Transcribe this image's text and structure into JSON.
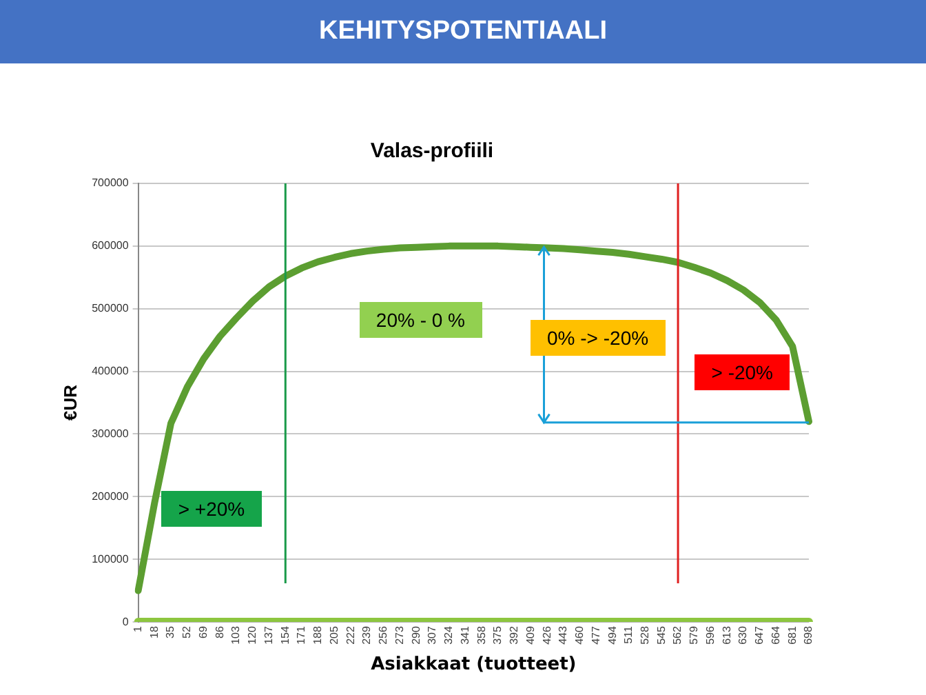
{
  "chart_data": {
    "type": "line",
    "title": "KEHITYSPOTENTIAALI",
    "subtitle": "Valas-profiili",
    "xlabel": "Asiakkaat (tuotteet)",
    "ylabel": "€UR",
    "categories": [
      "1",
      "18",
      "35",
      "52",
      "69",
      "86",
      "103",
      "120",
      "137",
      "154",
      "171",
      "188",
      "205",
      "222",
      "239",
      "256",
      "273",
      "290",
      "307",
      "324",
      "341",
      "358",
      "375",
      "392",
      "409",
      "426",
      "443",
      "460",
      "477",
      "494",
      "511",
      "528",
      "545",
      "562",
      "579",
      "596",
      "613",
      "630",
      "647",
      "664",
      "681",
      "698"
    ],
    "series": [
      {
        "color": "#5c9e31",
        "values": [
          50000,
          190000,
          317000,
          375000,
          420000,
          456000,
          485000,
          512000,
          535000,
          552000,
          565000,
          575000,
          582000,
          588000,
          592000,
          595000,
          597000,
          598000,
          599000,
          600000,
          600000,
          600000,
          600000,
          599000,
          598000,
          597000,
          596000,
          594000,
          592000,
          590000,
          587000,
          583000,
          579000,
          574000,
          566000,
          557000,
          545000,
          530000,
          510000,
          482000,
          440000,
          320000
        ]
      },
      {
        "color": "#8dc63f",
        "values": [
          0,
          0,
          0,
          0,
          0,
          0,
          0,
          0,
          0,
          0,
          0,
          0,
          0,
          0,
          0,
          0,
          0,
          0,
          0,
          0,
          0,
          0,
          0,
          0,
          0,
          0,
          0,
          0,
          0,
          0,
          0,
          0,
          0,
          0,
          0,
          0,
          0,
          0,
          0,
          0,
          0,
          0
        ]
      }
    ],
    "ylim": [
      0,
      700000
    ],
    "yticks": [
      0,
      100000,
      200000,
      300000,
      400000,
      500000,
      600000,
      700000
    ],
    "grid": "y",
    "legend": false,
    "marker": "none",
    "line_style": "solid",
    "ref_lines": [
      {
        "axis": "x",
        "value": "154",
        "color": "#1a9a4a"
      },
      {
        "axis": "x",
        "value": "562",
        "color": "#e02020"
      }
    ],
    "annotations": [
      "> +20%",
      "20% - 0 %",
      "0% -> -20%",
      "> -20%"
    ]
  }
}
